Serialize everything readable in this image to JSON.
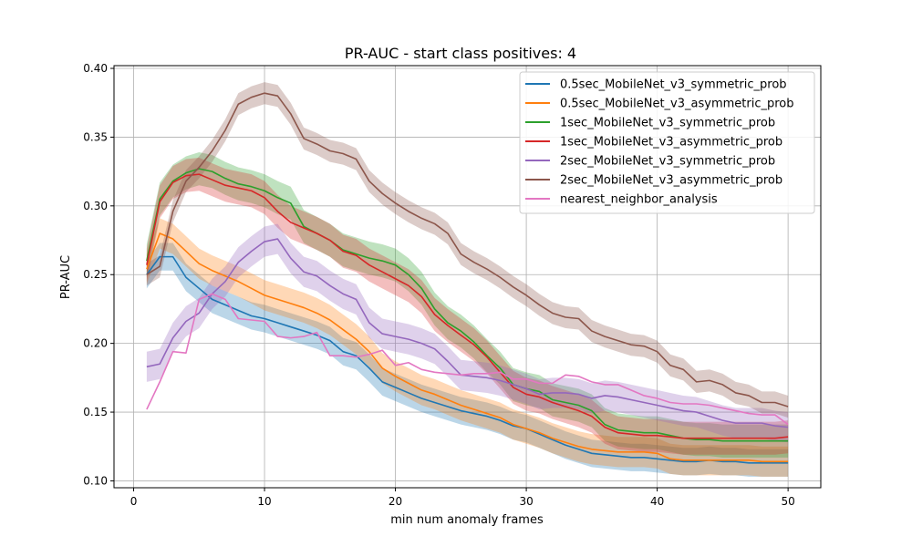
{
  "chart_data": {
    "type": "line",
    "title": "PR-AUC - start class positives: 4",
    "xlabel": "min num anomaly frames",
    "ylabel": "PR-AUC",
    "xlim": [
      -1.5,
      52.5
    ],
    "ylim": [
      0.095,
      0.402
    ],
    "xticks": [
      0,
      10,
      20,
      30,
      40,
      50
    ],
    "yticks": [
      0.1,
      0.15,
      0.2,
      0.25,
      0.3,
      0.35,
      0.4
    ],
    "grid": true,
    "legend_position": "top-right",
    "x": [
      1,
      2,
      3,
      4,
      5,
      6,
      7,
      8,
      9,
      10,
      11,
      12,
      13,
      14,
      15,
      16,
      17,
      18,
      19,
      20,
      21,
      22,
      23,
      24,
      25,
      26,
      27,
      28,
      29,
      30,
      31,
      32,
      33,
      34,
      35,
      36,
      37,
      38,
      39,
      40,
      41,
      42,
      43,
      44,
      45,
      46,
      47,
      48,
      49,
      50
    ],
    "series": [
      {
        "name": "0.5sec_MobileNet_v3_symmetric_prob",
        "color": "#1f77b4",
        "band": 0.01,
        "values": [
          0.25,
          0.263,
          0.263,
          0.248,
          0.24,
          0.232,
          0.228,
          0.224,
          0.22,
          0.218,
          0.215,
          0.212,
          0.209,
          0.206,
          0.202,
          0.194,
          0.191,
          0.182,
          0.172,
          0.168,
          0.164,
          0.16,
          0.157,
          0.154,
          0.151,
          0.149,
          0.147,
          0.144,
          0.14,
          0.138,
          0.134,
          0.13,
          0.126,
          0.123,
          0.12,
          0.119,
          0.118,
          0.117,
          0.117,
          0.116,
          0.115,
          0.114,
          0.114,
          0.115,
          0.114,
          0.114,
          0.113,
          0.113,
          0.113,
          0.113
        ]
      },
      {
        "name": "0.5sec_MobileNet_v3_asymmetric_prob",
        "color": "#ff7f0e",
        "band": 0.011,
        "values": [
          0.254,
          0.28,
          0.276,
          0.267,
          0.258,
          0.253,
          0.249,
          0.245,
          0.24,
          0.235,
          0.232,
          0.229,
          0.226,
          0.222,
          0.217,
          0.21,
          0.203,
          0.194,
          0.182,
          0.176,
          0.171,
          0.166,
          0.163,
          0.159,
          0.155,
          0.152,
          0.149,
          0.146,
          0.141,
          0.138,
          0.135,
          0.131,
          0.128,
          0.125,
          0.123,
          0.122,
          0.121,
          0.121,
          0.121,
          0.12,
          0.116,
          0.115,
          0.115,
          0.115,
          0.115,
          0.115,
          0.115,
          0.114,
          0.114,
          0.114
        ]
      },
      {
        "name": "1sec_MobileNet_v3_symmetric_prob",
        "color": "#2ca02c",
        "band": 0.012,
        "values": [
          0.26,
          0.305,
          0.318,
          0.324,
          0.327,
          0.325,
          0.32,
          0.316,
          0.314,
          0.311,
          0.306,
          0.302,
          0.285,
          0.28,
          0.275,
          0.268,
          0.265,
          0.262,
          0.26,
          0.257,
          0.25,
          0.24,
          0.225,
          0.215,
          0.209,
          0.201,
          0.191,
          0.182,
          0.17,
          0.167,
          0.165,
          0.159,
          0.157,
          0.155,
          0.151,
          0.141,
          0.137,
          0.136,
          0.135,
          0.135,
          0.133,
          0.131,
          0.13,
          0.13,
          0.129,
          0.129,
          0.129,
          0.129,
          0.129,
          0.129
        ]
      },
      {
        "name": "1sec_MobileNet_v3_asymmetric_prob",
        "color": "#d62728",
        "band": 0.012,
        "values": [
          0.257,
          0.303,
          0.317,
          0.322,
          0.323,
          0.319,
          0.315,
          0.313,
          0.311,
          0.306,
          0.296,
          0.288,
          0.284,
          0.28,
          0.275,
          0.267,
          0.264,
          0.257,
          0.252,
          0.247,
          0.242,
          0.234,
          0.221,
          0.213,
          0.206,
          0.199,
          0.19,
          0.179,
          0.168,
          0.163,
          0.161,
          0.157,
          0.154,
          0.151,
          0.147,
          0.139,
          0.135,
          0.134,
          0.133,
          0.133,
          0.132,
          0.131,
          0.131,
          0.131,
          0.131,
          0.131,
          0.131,
          0.131,
          0.131,
          0.132
        ]
      },
      {
        "name": "2sec_MobileNet_v3_symmetric_prob",
        "color": "#9467bd",
        "band": 0.011,
        "values": [
          0.183,
          0.185,
          0.204,
          0.216,
          0.222,
          0.236,
          0.245,
          0.259,
          0.267,
          0.274,
          0.276,
          0.262,
          0.252,
          0.249,
          0.242,
          0.236,
          0.232,
          0.215,
          0.207,
          0.205,
          0.203,
          0.2,
          0.196,
          0.187,
          0.177,
          0.176,
          0.175,
          0.173,
          0.17,
          0.167,
          0.163,
          0.164,
          0.164,
          0.163,
          0.16,
          0.162,
          0.161,
          0.159,
          0.157,
          0.155,
          0.153,
          0.151,
          0.15,
          0.147,
          0.144,
          0.142,
          0.142,
          0.142,
          0.14,
          0.139
        ]
      },
      {
        "name": "2sec_MobileNet_v3_asymmetric_prob",
        "color": "#8c564b",
        "band": 0.008,
        "values": [
          0.25,
          0.256,
          0.296,
          0.318,
          0.328,
          0.34,
          0.355,
          0.374,
          0.379,
          0.382,
          0.38,
          0.367,
          0.349,
          0.345,
          0.34,
          0.338,
          0.334,
          0.318,
          0.309,
          0.302,
          0.296,
          0.291,
          0.287,
          0.28,
          0.265,
          0.259,
          0.254,
          0.248,
          0.241,
          0.235,
          0.228,
          0.222,
          0.219,
          0.218,
          0.209,
          0.205,
          0.202,
          0.199,
          0.198,
          0.194,
          0.184,
          0.181,
          0.172,
          0.173,
          0.17,
          0.164,
          0.162,
          0.157,
          0.157,
          0.154
        ]
      },
      {
        "name": "nearest_neighbor_analysis",
        "color": "#e377c2",
        "band": 0.0,
        "values": [
          0.152,
          0.172,
          0.194,
          0.193,
          0.232,
          0.236,
          0.232,
          0.218,
          0.217,
          0.216,
          0.205,
          0.204,
          0.205,
          0.208,
          0.191,
          0.191,
          0.19,
          0.192,
          0.195,
          0.184,
          0.186,
          0.181,
          0.179,
          0.178,
          0.177,
          0.178,
          0.178,
          0.179,
          0.174,
          0.174,
          0.171,
          0.171,
          0.177,
          0.176,
          0.172,
          0.17,
          0.17,
          0.166,
          0.162,
          0.16,
          0.157,
          0.156,
          0.156,
          0.155,
          0.153,
          0.151,
          0.149,
          0.148,
          0.148,
          0.141
        ]
      }
    ]
  }
}
